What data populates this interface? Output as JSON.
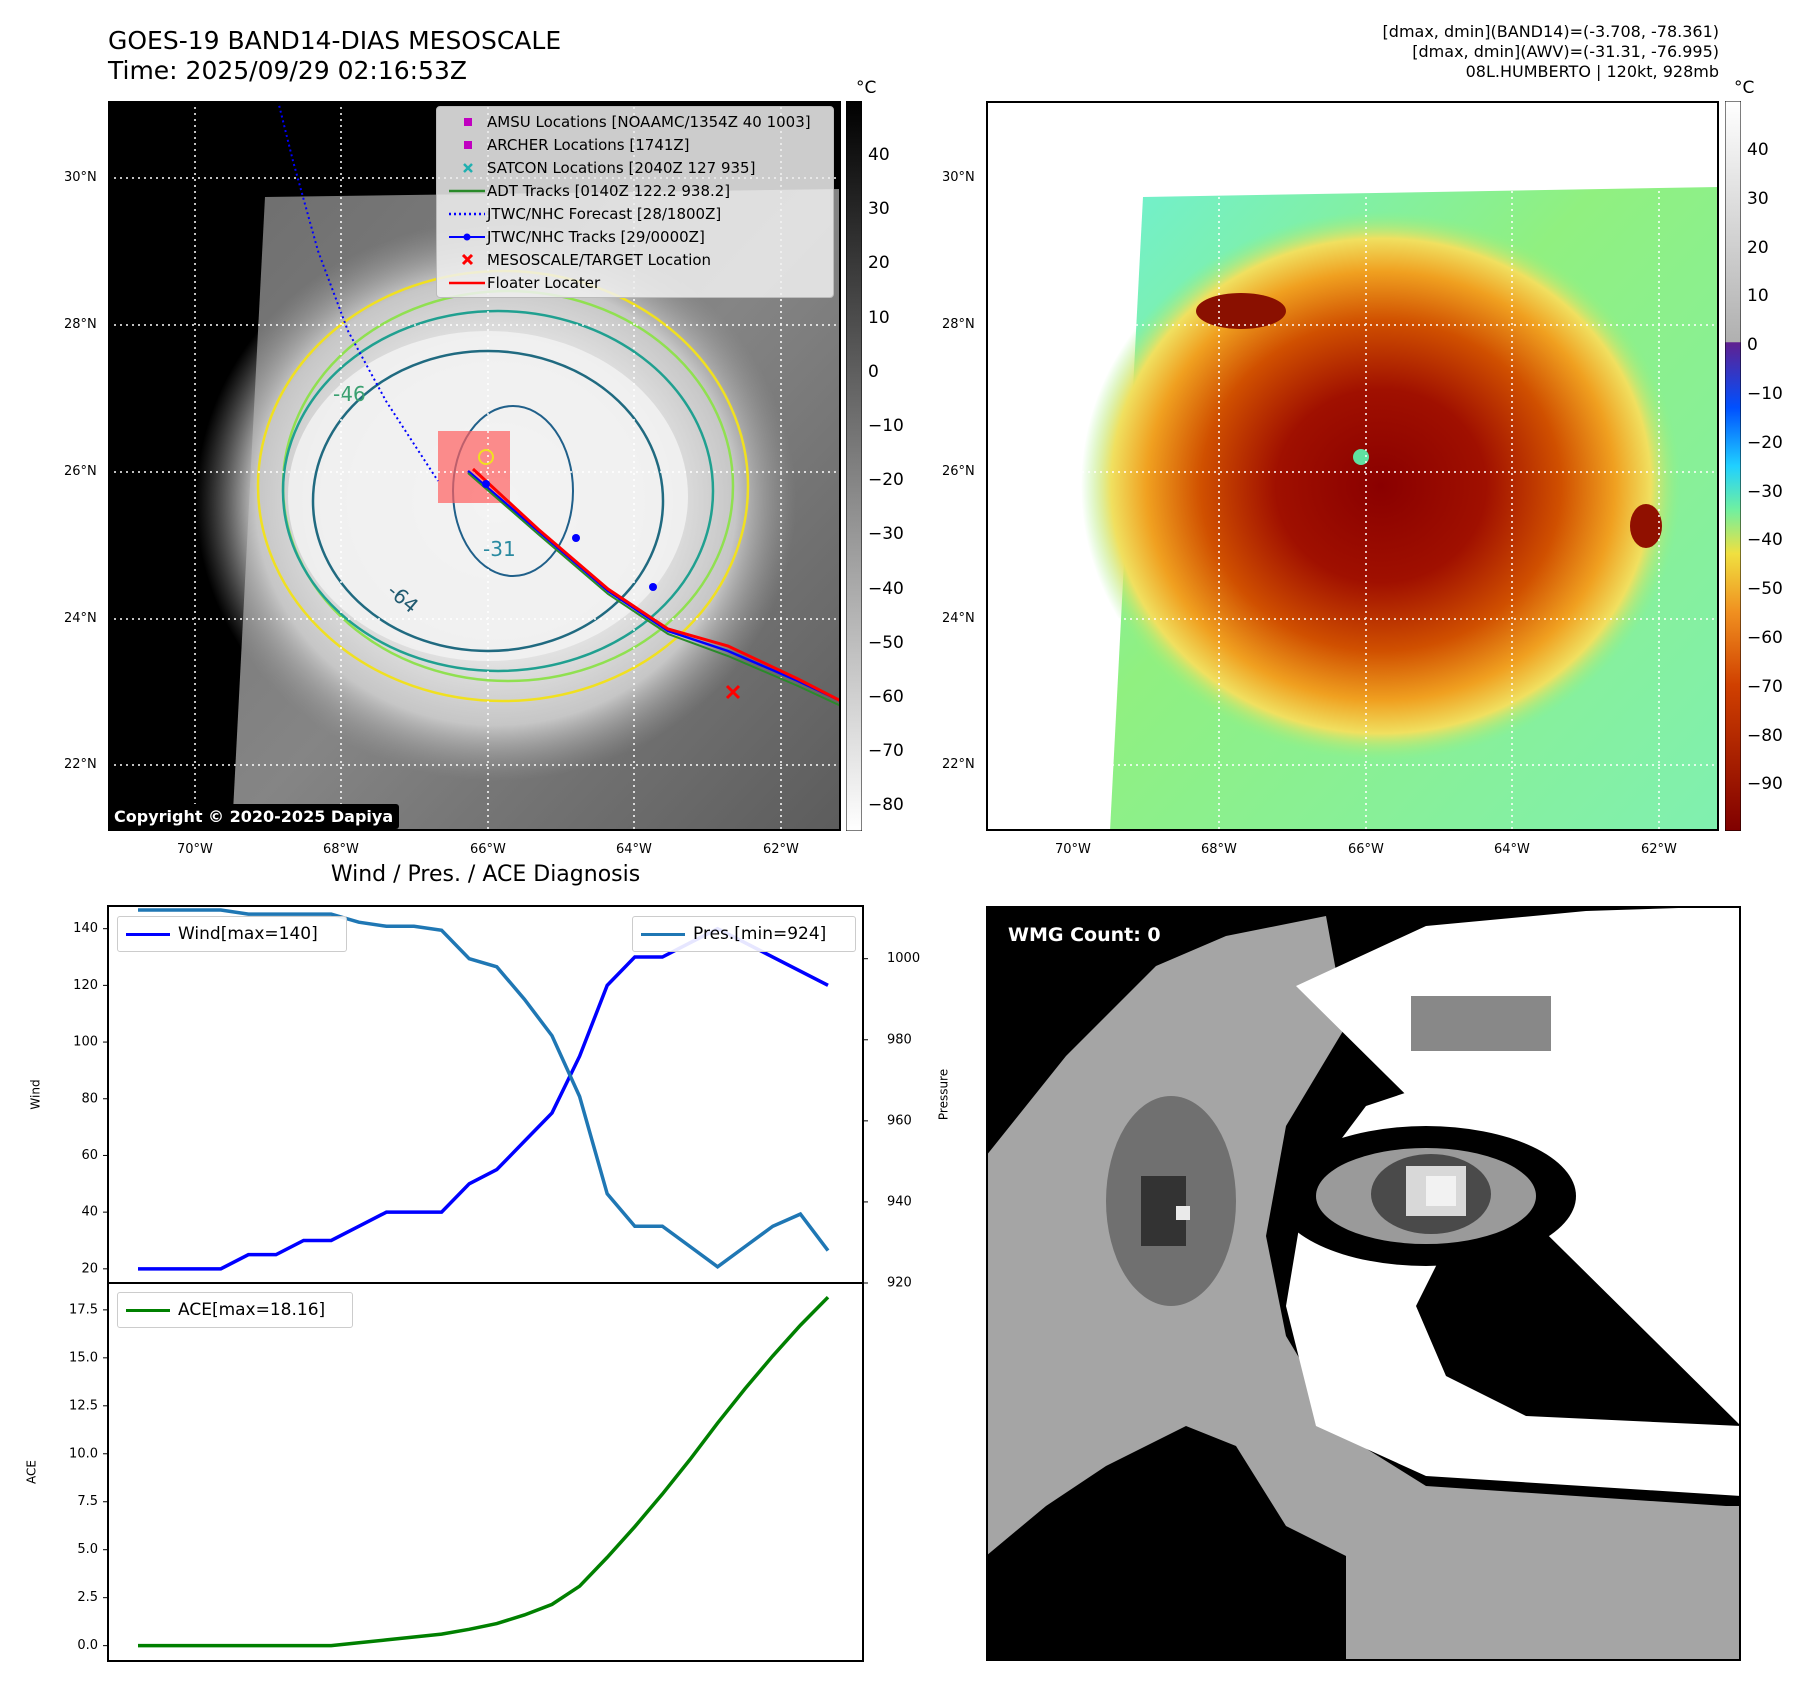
{
  "header": {
    "title_line1": "GOES-19 BAND14-DIAS MESOSCALE",
    "title_line2": "Time: 2025/09/29 02:16:53Z",
    "right_line1": "[dmax, dmin](BAND14)=(-3.708, -78.361)",
    "right_line2": "[dmax, dmin](AWV)=(-31.31, -76.995)",
    "right_line3": "08L.HUMBERTO | 120kt, 928mb"
  },
  "map_axes": {
    "lon_labels": [
      "70°W",
      "68°W",
      "66°W",
      "64°W",
      "62°W"
    ],
    "lat_labels": [
      "30°N",
      "28°N",
      "26°N",
      "24°N",
      "22°N"
    ]
  },
  "ir_panel": {
    "copyright": "Copyright © 2020-2025 Dapiya",
    "contour_labels": [
      "-64",
      "-31",
      "-46"
    ],
    "legend": [
      {
        "label": "AMSU Locations [NOAAMC/1354Z 40 1003]",
        "symbol": "square",
        "color": "#c000c0"
      },
      {
        "label": "ARCHER Locations [1741Z]",
        "symbol": "square",
        "color": "#c000c0"
      },
      {
        "label": "SATCON Locations [2040Z 127 935]",
        "symbol": "x",
        "color": "#20b0b0"
      },
      {
        "label": "ADT Tracks [0140Z 122.2 938.2]",
        "symbol": "line",
        "color": "#2a8a2a"
      },
      {
        "label": "JTWC/NHC Forecast [28/1800Z]",
        "symbol": "dotted",
        "color": "#0000ff"
      },
      {
        "label": "JTWC/NHC Tracks [29/0000Z]",
        "symbol": "line-dot",
        "color": "#0000ff"
      },
      {
        "label": "MESOSCALE/TARGET Location",
        "symbol": "x",
        "color": "#ff0000"
      },
      {
        "label": "Floater Locater",
        "symbol": "line",
        "color": "#ff0000"
      }
    ],
    "colorbar_unit": "°C",
    "colorbar_ticks": [
      "40",
      "30",
      "20",
      "10",
      "0",
      "−10",
      "−20",
      "−30",
      "−40",
      "−50",
      "−60",
      "−70",
      "−80"
    ]
  },
  "wv_panel": {
    "colorbar_unit": "°C",
    "colorbar_ticks": [
      "40",
      "30",
      "20",
      "10",
      "0",
      "−10",
      "−20",
      "−30",
      "−40",
      "−50",
      "−60",
      "−70",
      "−80",
      "−90"
    ]
  },
  "wmg_panel": {
    "badge": "WMG Count: 0"
  },
  "colors": {
    "wind": "#0000ff",
    "pressure": "#1f77b4",
    "ace": "#008000",
    "forecast_track": "#0000ff",
    "floater": "#ff0000"
  },
  "chart_data": [
    {
      "type": "line",
      "title": "Wind / Pres. / ACE Diagnosis",
      "ylabel": "Wind",
      "y2label": "Pressure",
      "ylim": [
        15,
        148
      ],
      "y2lim": [
        920,
        1013
      ],
      "yticks": [
        20,
        40,
        60,
        80,
        100,
        120,
        140
      ],
      "y2ticks": [
        920,
        940,
        960,
        980,
        1000
      ],
      "series": [
        {
          "name": "Wind[max=140]",
          "axis": "left",
          "values": [
            20,
            20,
            20,
            20,
            25,
            25,
            30,
            30,
            35,
            40,
            40,
            40,
            50,
            55,
            65,
            75,
            95,
            120,
            130,
            130,
            135,
            140,
            135,
            130,
            125,
            120
          ]
        },
        {
          "name": "Pres.[min=924]",
          "axis": "right",
          "values": [
            1012,
            1012,
            1012,
            1012,
            1011,
            1011,
            1011,
            1011,
            1009,
            1008,
            1008,
            1007,
            1000,
            998,
            990,
            981,
            966,
            942,
            934,
            934,
            929,
            924,
            929,
            934,
            937,
            928
          ]
        }
      ]
    },
    {
      "type": "line",
      "ylabel": "ACE",
      "ylim": [
        -0.8,
        18.9
      ],
      "yticks": [
        "0.0",
        "2.5",
        "5.0",
        "7.5",
        "10.0",
        "12.5",
        "15.0",
        "17.5"
      ],
      "series": [
        {
          "name": "ACE[max=18.16]",
          "values": [
            0,
            0,
            0,
            0,
            0,
            0,
            0,
            0,
            0.15,
            0.3,
            0.45,
            0.6,
            0.85,
            1.15,
            1.6,
            2.15,
            3.1,
            4.6,
            6.2,
            7.9,
            9.7,
            11.6,
            13.4,
            15.1,
            16.7,
            18.16
          ]
        }
      ]
    }
  ]
}
